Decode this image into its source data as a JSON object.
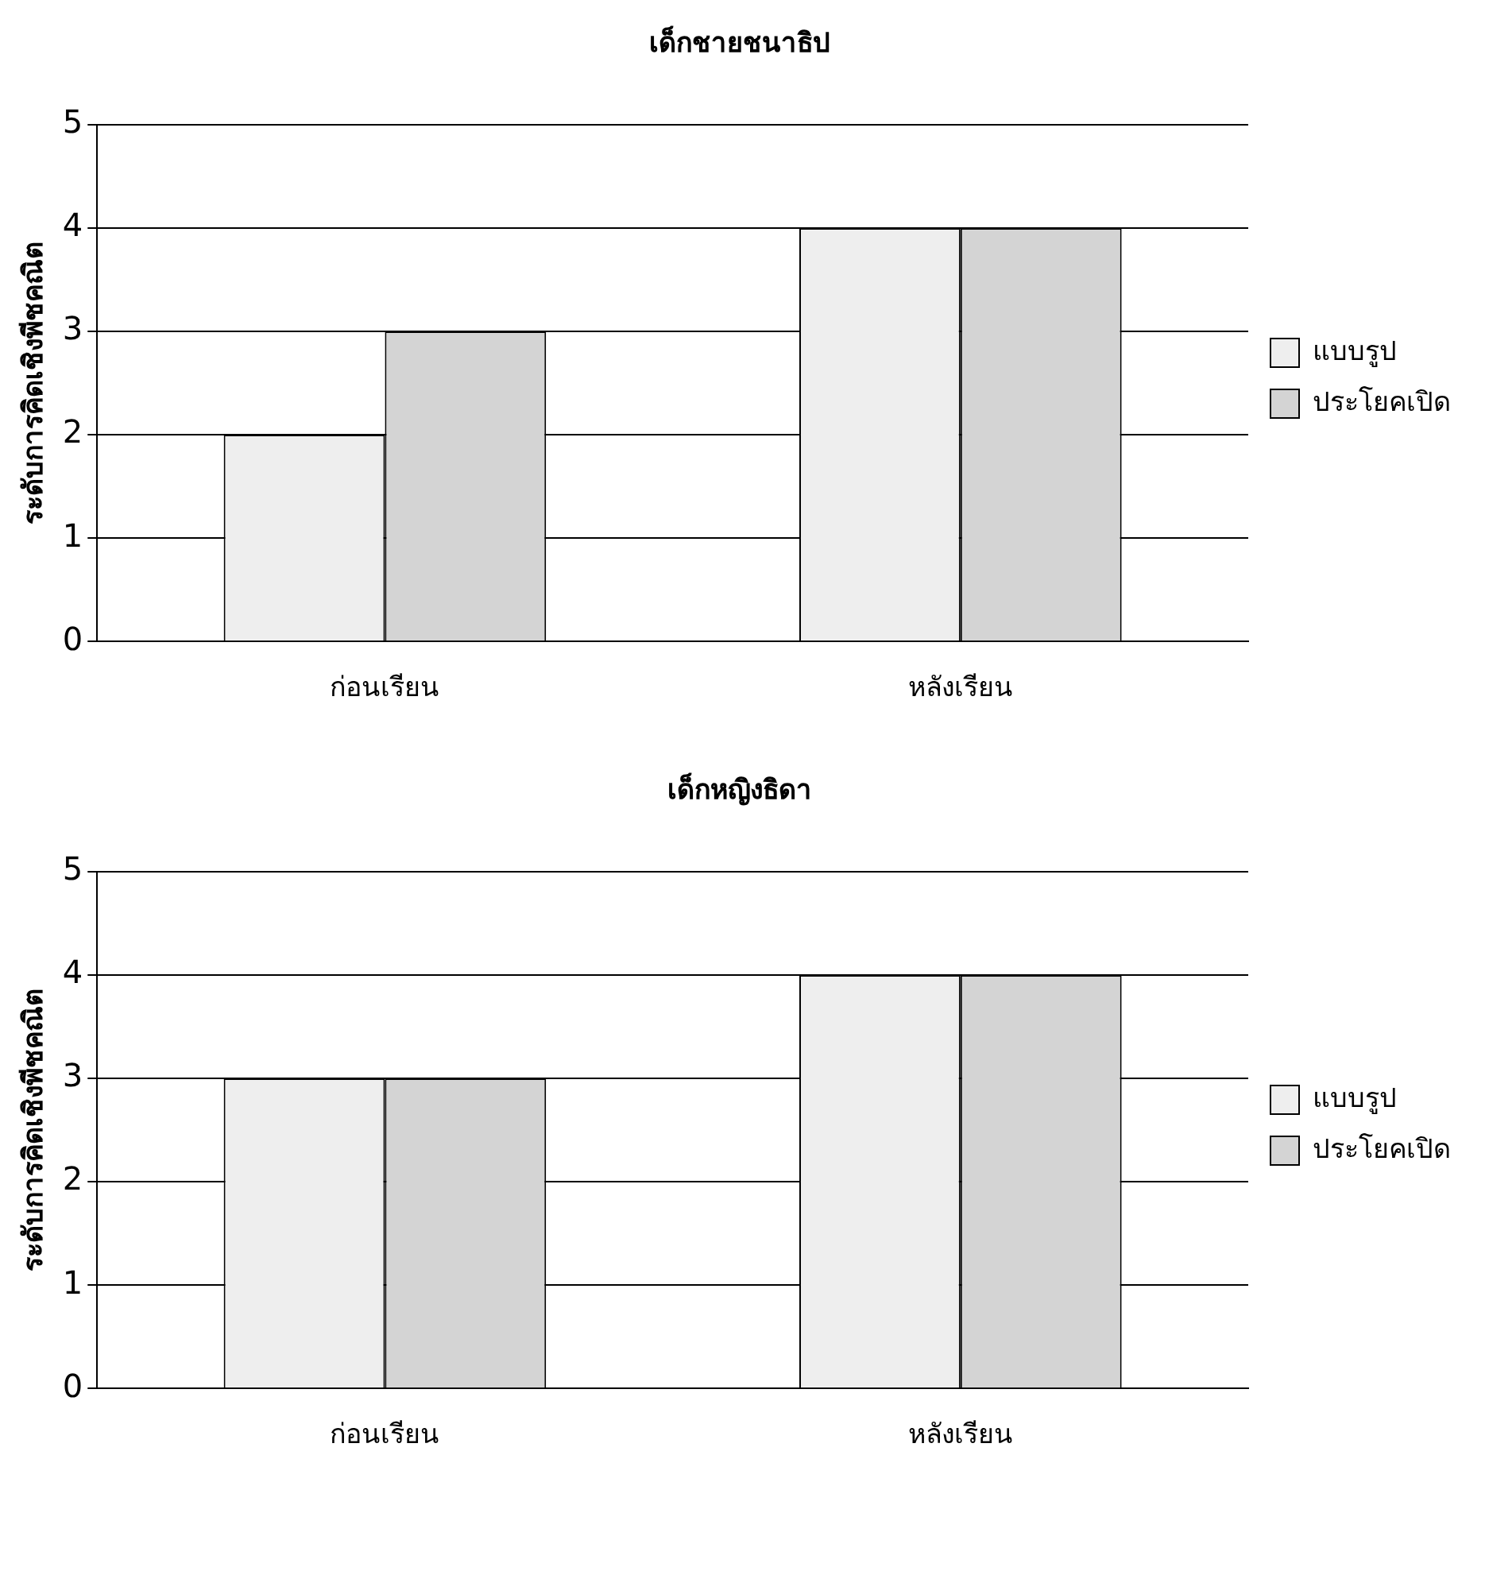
{
  "chart_data": [
    {
      "type": "bar",
      "title": "เด็กชายชนาธิป",
      "ylabel": "ระดับการคิดเชิงพีชคณิต",
      "categories": [
        "ก่อนเรียน",
        "หลังเรียน"
      ],
      "series": [
        {
          "name": "แบบรูป",
          "color": "#eeeeee",
          "values": [
            2,
            4
          ]
        },
        {
          "name": "ประโยคเปิด",
          "color": "#d4d4d4",
          "values": [
            3,
            4
          ]
        }
      ],
      "ylim": [
        0,
        5
      ],
      "yticks": [
        0,
        1,
        2,
        3,
        4,
        5
      ],
      "grid": "y",
      "legend": "right"
    },
    {
      "type": "bar",
      "title": "เด็กหญิงธิดา",
      "ylabel": "ระดับการคิดเชิงพีชคณิต",
      "categories": [
        "ก่อนเรียน",
        "หลังเรียน"
      ],
      "series": [
        {
          "name": "แบบรูป",
          "color": "#eeeeee",
          "values": [
            3,
            4
          ]
        },
        {
          "name": "ประโยคเปิด",
          "color": "#d4d4d4",
          "values": [
            3,
            4
          ]
        }
      ],
      "ylim": [
        0,
        5
      ],
      "yticks": [
        0,
        1,
        2,
        3,
        4,
        5
      ],
      "grid": "y",
      "legend": "right"
    }
  ]
}
